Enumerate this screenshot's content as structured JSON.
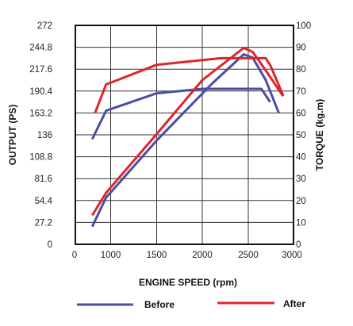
{
  "chart_data": {
    "type": "line",
    "xlabel": "ENGINE SPEED (rpm)",
    "ylabel_left": "OUTPUT (PS)",
    "ylabel_right": "TORQUE (kg.m)",
    "x_ticks": [
      "0",
      "1000",
      "1500",
      "2000",
      "2500",
      "3000"
    ],
    "x_range": [
      600,
      3000
    ],
    "y_left_ticks": [
      "0",
      "27.2",
      "54.4",
      "81.6",
      "108.8",
      "136",
      "163.2",
      "190.4",
      "217.6",
      "244.8",
      "272"
    ],
    "y_left_range": [
      0,
      272
    ],
    "y_right_ticks": [
      "0",
      "10",
      "20",
      "30",
      "40",
      "50",
      "60",
      "70",
      "80",
      "90",
      "100"
    ],
    "y_right_range": [
      0,
      100
    ],
    "grid": true,
    "legend_position": "bottom",
    "series": [
      {
        "name": "Before",
        "color": "#4a4ea3",
        "axis": "left",
        "x": [
          800,
          950,
          1500,
          2100,
          2450,
          2550,
          2700,
          2850
        ],
        "y": [
          22,
          58,
          129,
          199,
          236,
          232,
          204,
          163
        ]
      },
      {
        "name": "Before",
        "color": "#4a4ea3",
        "axis": "right",
        "x": [
          800,
          950,
          1500,
          2000,
          2500,
          2650,
          2750
        ],
        "y": [
          48,
          61,
          69,
          71,
          71,
          71,
          65
        ]
      },
      {
        "name": "After",
        "color": "#e0242f",
        "axis": "left",
        "x": [
          800,
          950,
          1500,
          2000,
          2450,
          2550,
          2700,
          2900
        ],
        "y": [
          36,
          64,
          137,
          204,
          244,
          239,
          216,
          184
        ]
      },
      {
        "name": "After",
        "color": "#e0242f",
        "axis": "right",
        "x": [
          830,
          950,
          1500,
          2200,
          2700,
          2750,
          2900
        ],
        "y": [
          60,
          73,
          82,
          85,
          85,
          82,
          68
        ]
      }
    ]
  },
  "legend": {
    "before_label": "Before",
    "after_label": "After",
    "before_color": "#4a4ea3",
    "after_color": "#e0242f"
  }
}
